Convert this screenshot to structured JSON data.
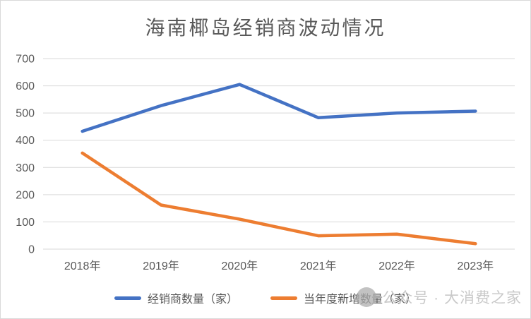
{
  "chart_data": {
    "type": "line",
    "title": "海南椰岛经销商波动情况",
    "categories": [
      "2018年",
      "2019年",
      "2020年",
      "2021年",
      "2022年",
      "2023年"
    ],
    "series": [
      {
        "name": "经销商数量（家）",
        "slug": "dealers",
        "color": "#4472C4",
        "values": [
          433,
          527,
          605,
          483,
          500,
          507
        ]
      },
      {
        "name": "当年度新增数量（家）",
        "slug": "new-additions",
        "color": "#ED7D31",
        "values": [
          353,
          162,
          110,
          49,
          55,
          20
        ]
      }
    ],
    "ylim": [
      0,
      700
    ],
    "yticks": [
      0,
      100,
      200,
      300,
      400,
      500,
      600,
      700
    ],
    "xlabel": "",
    "ylabel": "",
    "grid": true,
    "legend_position": "bottom",
    "gridline_color": "#D9D9D9",
    "axis_text_color": "#595959",
    "title_color": "#595959"
  },
  "watermark": {
    "icon": "circle-logo",
    "text": "公众号 · 大消费之家",
    "text_color": "#C9C9C9",
    "logo_color": "#ABABAB"
  }
}
